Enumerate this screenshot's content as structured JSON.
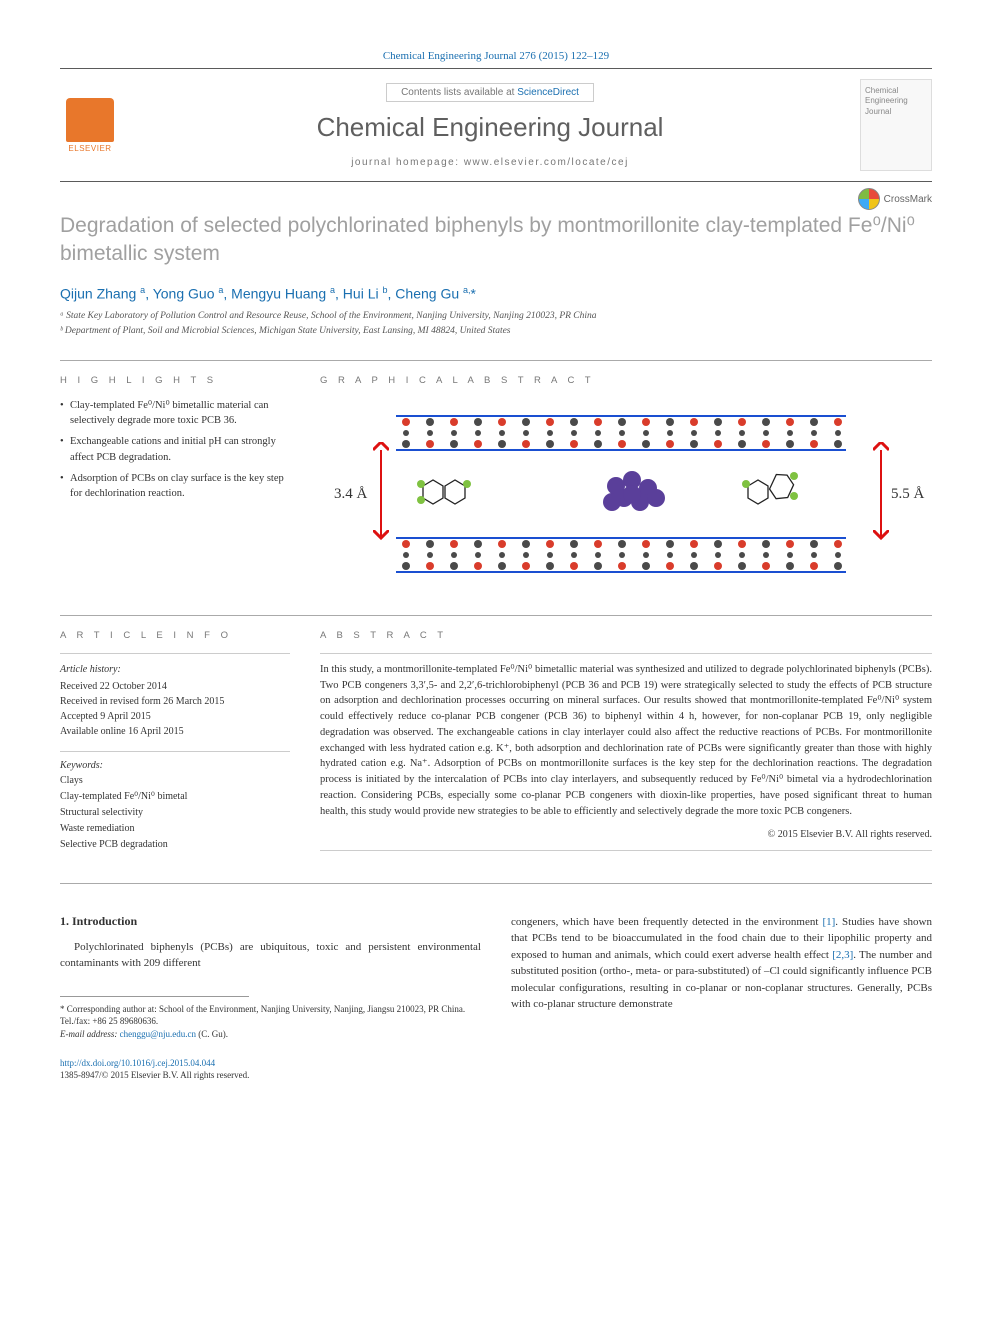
{
  "citation": "Chemical Engineering Journal 276 (2015) 122–129",
  "header": {
    "contents_prefix": "Contents lists available at ",
    "contents_link": "ScienceDirect",
    "journal_name": "Chemical Engineering Journal",
    "homepage_label": "journal homepage: ",
    "homepage_url": "www.elsevier.com/locate/cej",
    "publisher": "ELSEVIER",
    "cover_text": "Chemical Engineering Journal"
  },
  "crossmark_label": "CrossMark",
  "title": "Degradation of selected polychlorinated biphenyls by montmorillonite clay-templated Fe⁰/Ni⁰ bimetallic system",
  "authors_html": "Qijun Zhang <sup>a</sup>, Yong Guo <sup>a</sup>, Mengyu Huang <sup>a</sup>, Hui Li <sup>b</sup>, Cheng Gu <sup>a,</sup><span class='star'>*</span>",
  "affiliations": [
    "ᵃ State Key Laboratory of Pollution Control and Resource Reuse, School of the Environment, Nanjing University, Nanjing 210023, PR China",
    "ᵇ Department of Plant, Soil and Microbial Sciences, Michigan State University, East Lansing, MI 48824, United States"
  ],
  "highlights": {
    "label": "H I G H L I G H T S",
    "items": [
      "Clay-templated Fe⁰/Ni⁰ bimetallic material can selectively degrade more toxic PCB 36.",
      "Exchangeable cations and initial pH can strongly affect PCB degradation.",
      "Adsorption of PCBs on clay surface is the key step for dechlorination reaction."
    ]
  },
  "graphical": {
    "label": "G R A P H I C A L  A B S T R A C T",
    "left_gap": "3.4 Å",
    "right_gap": "5.5 Å",
    "colors": {
      "si": "#d93c2b",
      "o": "#4a4a4a",
      "metal": "#5a3f9a",
      "bond": "#222",
      "cl": "#7fc241",
      "arrow": "#d11",
      "bracket": "#1a4fd1"
    }
  },
  "article_info": {
    "label": "A R T I C L E  I N F O",
    "history_heading": "Article history:",
    "history": [
      "Received 22 October 2014",
      "Received in revised form 26 March 2015",
      "Accepted 9 April 2015",
      "Available online 16 April 2015"
    ],
    "keywords_heading": "Keywords:",
    "keywords": [
      "Clays",
      "Clay-templated Fe⁰/Ni⁰ bimetal",
      "Structural selectivity",
      "Waste remediation",
      "Selective PCB degradation"
    ]
  },
  "abstract": {
    "label": "A B S T R A C T",
    "text": "In this study, a montmorillonite-templated Fe⁰/Ni⁰ bimetallic material was synthesized and utilized to degrade polychlorinated biphenyls (PCBs). Two PCB congeners 3,3′,5- and 2,2′,6-trichlorobiphenyl (PCB 36 and PCB 19) were strategically selected to study the effects of PCB structure on adsorption and dechlorination processes occurring on mineral surfaces. Our results showed that montmorillonite-templated Fe⁰/Ni⁰ system could effectively reduce co-planar PCB congener (PCB 36) to biphenyl within 4 h, however, for non-coplanar PCB 19, only negligible degradation was observed. The exchangeable cations in clay interlayer could also affect the reductive reactions of PCBs. For montmorillonite exchanged with less hydrated cation e.g. K⁺, both adsorption and dechlorination rate of PCBs were significantly greater than those with highly hydrated cation e.g. Na⁺. Adsorption of PCBs on montmorillonite surfaces is the key step for the dechlorination reactions. The degradation process is initiated by the intercalation of PCBs into clay interlayers, and subsequently reduced by Fe⁰/Ni⁰ bimetal via a hydrodechlorination reaction. Considering PCBs, especially some co-planar PCB congeners with dioxin-like properties, have posed significant threat to human health, this study would provide new strategies to be able to efficiently and selectively degrade the more toxic PCB congeners.",
    "copyright": "© 2015 Elsevier B.V. All rights reserved."
  },
  "introduction": {
    "heading": "1. Introduction",
    "col1": "Polychlorinated biphenyls (PCBs) are ubiquitous, toxic and persistent environmental contaminants with 209 different",
    "col2_parts": [
      "congeners, which have been frequently detected in the environment ",
      ". Studies have shown that PCBs tend to be bioaccumulated in the food chain due to their lipophilic property and exposed to human and animals, which could exert adverse health effect ",
      ". The number and substituted position (ortho-, meta- or para-substituted) of –Cl could significantly influence PCB molecular configurations, resulting in co-planar or non-coplanar structures. Generally, PCBs with co-planar structure demonstrate"
    ],
    "ref1": "[1]",
    "ref23": "[2,3]"
  },
  "footnotes": {
    "corresponding": "* Corresponding author at: School of the Environment, Nanjing University, Nanjing, Jiangsu 210023, PR China. Tel./fax: +86 25 89680636.",
    "email_label": "E-mail address: ",
    "email": "chenggu@nju.edu.cn",
    "email_suffix": " (C. Gu)."
  },
  "doi": {
    "url": "http://dx.doi.org/10.1016/j.cej.2015.04.044",
    "issn": "1385-8947/© 2015 Elsevier B.V. All rights reserved."
  }
}
